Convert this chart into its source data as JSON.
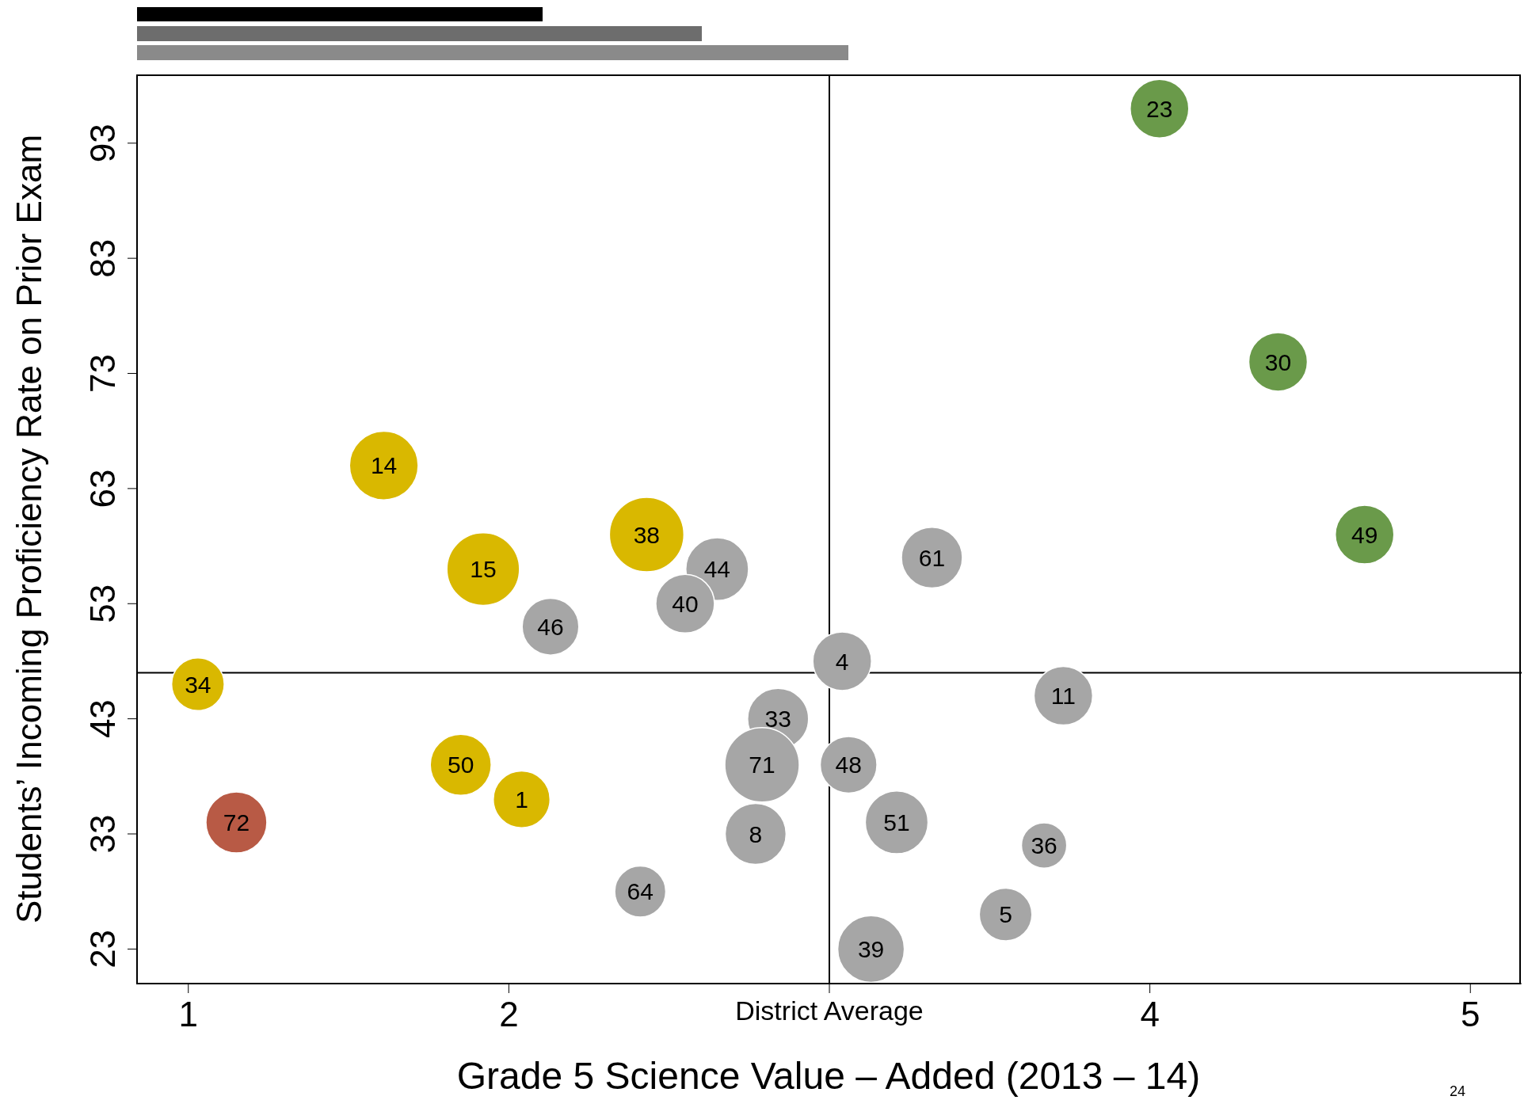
{
  "chart_data": {
    "type": "bubble",
    "xlabel": "Grade 5 Science Value – Added (2013 – 14)",
    "ylabel": "Students’ Incoming Proficiency Rate on Prior Exam",
    "xlim": [
      0.84,
      5.16
    ],
    "xticks": [
      1,
      2,
      {
        "value": 3,
        "label": "District Average"
      },
      4,
      5
    ],
    "ylim": [
      20,
      98.9
    ],
    "yticks": [
      23,
      33,
      43,
      53,
      63,
      73,
      83,
      93
    ],
    "grid": false,
    "legend": false,
    "ref_lines": [
      {
        "axis": "x",
        "value": 3,
        "color": "#000000"
      },
      {
        "axis": "y",
        "value": 47,
        "color": "#000000"
      }
    ],
    "annotations": [
      "24",
      {
        "text": "23",
        "x": 4.03,
        "y": 96
      },
      {
        "text": "30",
        "x": 4.4,
        "y": 74
      },
      {
        "text": "49",
        "x": 4.67,
        "y": 59
      },
      {
        "text": "14",
        "x": 1.61,
        "y": 65
      },
      {
        "text": "15",
        "x": 1.92,
        "y": 56
      },
      {
        "text": "38",
        "x": 2.43,
        "y": 59
      },
      {
        "text": "34",
        "x": 1.03,
        "y": 46
      },
      {
        "text": "50",
        "x": 1.85,
        "y": 39
      },
      {
        "text": "1",
        "x": 2.04,
        "y": 36
      },
      {
        "text": "44",
        "x": 2.65,
        "y": 56
      },
      {
        "text": "40",
        "x": 2.55,
        "y": 53
      },
      {
        "text": "46",
        "x": 2.13,
        "y": 51
      },
      {
        "text": "61",
        "x": 3.32,
        "y": 57
      },
      {
        "text": "4",
        "x": 3.04,
        "y": 48
      },
      {
        "text": "11",
        "x": 3.73,
        "y": 45
      },
      {
        "text": "33",
        "x": 2.84,
        "y": 43
      },
      {
        "text": "71",
        "x": 2.79,
        "y": 39
      },
      {
        "text": "48",
        "x": 3.06,
        "y": 39
      },
      {
        "text": "8",
        "x": 2.77,
        "y": 33
      },
      {
        "text": "51",
        "x": 3.21,
        "y": 34
      },
      {
        "text": "36",
        "x": 3.67,
        "y": 32
      },
      {
        "text": "64",
        "x": 2.41,
        "y": 28
      },
      {
        "text": "5",
        "x": 3.55,
        "y": 26
      },
      {
        "text": "39",
        "x": 3.13,
        "y": 23
      },
      {
        "text": "72",
        "x": 1.15,
        "y": 34
      }
    ],
    "series": [
      {
        "color": "#6a9a4a",
        "x": [
          4.03,
          4.4,
          4.67
        ],
        "values": [
          96,
          74,
          59
        ],
        "sizes": [
          0.62,
          0.62,
          0.62
        ]
      },
      {
        "color": "#d9b800",
        "x": [
          1.61,
          1.92,
          2.43,
          1.03,
          1.85,
          2.04
        ],
        "values": [
          65,
          56,
          59,
          46,
          39,
          36
        ],
        "sizes": [
          0.85,
          0.95,
          1,
          0.5,
          0.67,
          0.58
        ]
      },
      {
        "color": "#a6a6a6",
        "x": [
          2.65,
          2.55,
          2.13,
          3.32,
          3.04,
          3.73,
          2.84,
          2.79,
          3.06,
          2.77,
          3.21,
          3.67,
          2.41,
          3.55,
          3.13
        ],
        "values": [
          56,
          53,
          51,
          57,
          48,
          45,
          43,
          39,
          39,
          33,
          34,
          32,
          28,
          26,
          23
        ],
        "sizes": [
          0.71,
          0.62,
          0.58,
          0.67,
          0.62,
          0.62,
          0.67,
          1,
          0.58,
          0.67,
          0.71,
          0.37,
          0.47,
          0.5,
          0.8
        ]
      },
      {
        "color": "#b85a45",
        "x": [
          1.15
        ],
        "values": [
          34
        ],
        "sizes": [
          0.67
        ]
      }
    ]
  }
}
